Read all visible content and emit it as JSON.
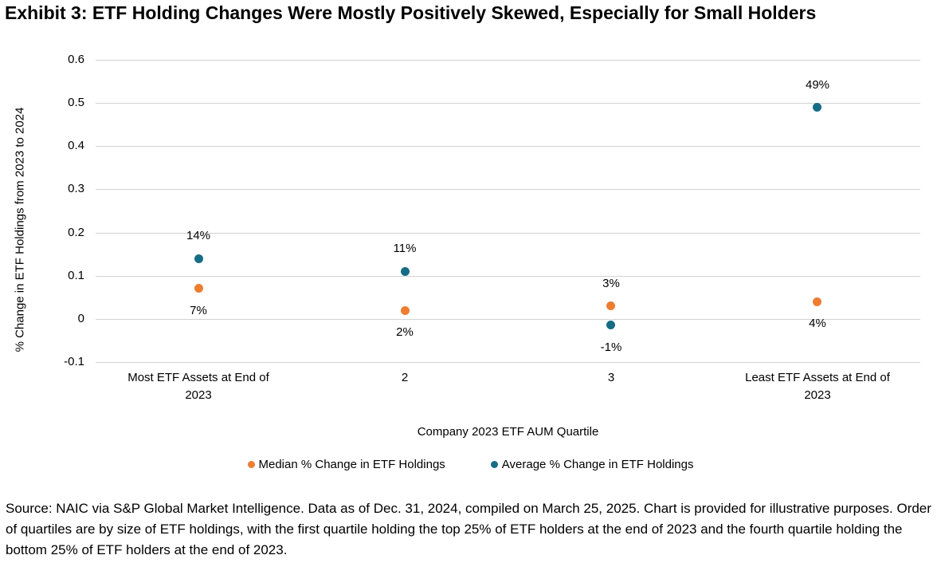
{
  "title": "Exhibit 3: ETF Holding Changes Were Mostly Positively Skewed, Especially for Small Holders",
  "source_note": "Source: NAIC via S&P Global Market Intelligence. Data as of Dec. 31, 2024, compiled on March 25, 2025. Chart is provided for illustrative purposes. Order of quartiles are by size of ETF holdings, with the first quartile holding the top 25% of ETF holders at the end of 2023 and the fourth quartile holding the bottom 25% of ETF holders at the end of 2023.",
  "chart_data": {
    "type": "scatter",
    "categories": [
      "Most ETF Assets at End of 2023",
      "2",
      "3",
      "Least ETF Assets at End of 2023"
    ],
    "xlabel": "Company 2023 ETF AUM Quartile",
    "ylabel": "% Change in ETF Holdings from 2023 to 2024",
    "ylim": [
      -0.1,
      0.6
    ],
    "grid": true,
    "legend_position": "bottom",
    "yticks": [
      {
        "value": 0.6,
        "label": "0.6"
      },
      {
        "value": 0.5,
        "label": "0.5"
      },
      {
        "value": 0.4,
        "label": "0.4"
      },
      {
        "value": 0.3,
        "label": "0.3"
      },
      {
        "value": 0.2,
        "label": "0.2"
      },
      {
        "value": 0.1,
        "label": "0.1"
      },
      {
        "value": 0,
        "label": "0"
      },
      {
        "value": -0.1,
        "label": "-0.1"
      }
    ],
    "series": [
      {
        "name": "Median % Change in ETF Holdings",
        "color": "#ED7D31",
        "values": [
          0.07,
          0.02,
          0.03,
          0.04
        ],
        "labels": [
          "7%",
          "2%",
          "3%",
          "4%"
        ],
        "label_positions": [
          "below",
          "below",
          "above",
          "below"
        ]
      },
      {
        "name": "Average % Change in ETF Holdings",
        "color": "#156C85",
        "values": [
          0.14,
          0.11,
          -0.015,
          0.49
        ],
        "labels": [
          "14%",
          "11%",
          "-1%",
          "49%"
        ],
        "label_positions": [
          "above",
          "above",
          "below",
          "above"
        ]
      }
    ]
  }
}
